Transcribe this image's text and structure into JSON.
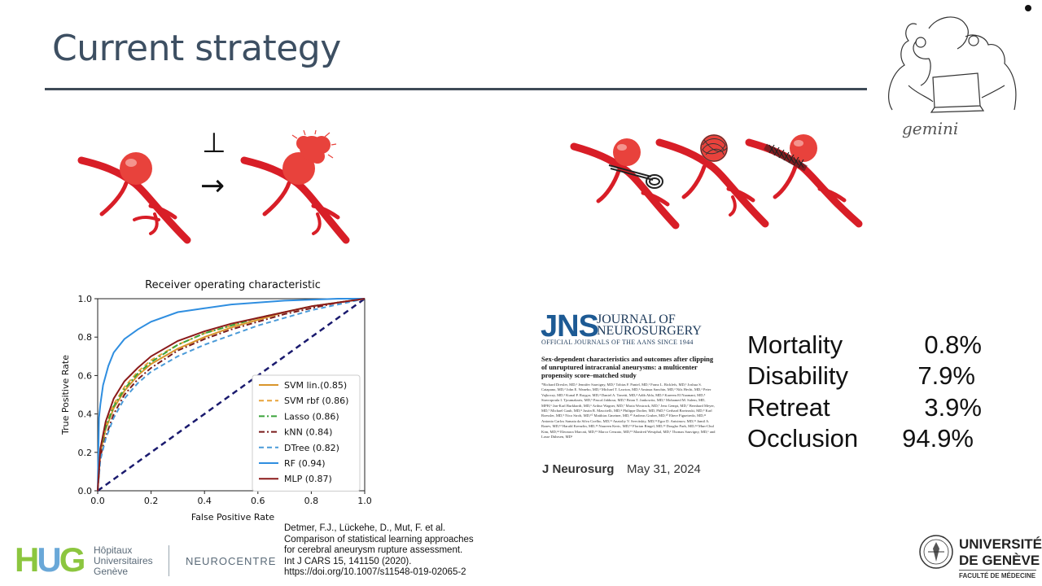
{
  "slide": {
    "title": "Current strategy"
  },
  "flow_symbols": {
    "perpendicular": "⊥",
    "arrow": "→"
  },
  "logos": {
    "gemini": "gemini",
    "hug": {
      "mark": "HUG",
      "line1": "Hôpitaux",
      "line2": "Universitaires",
      "line3": "Genève",
      "neurocentre": "NEUROCENTRE"
    },
    "unige": {
      "line1": "UNIVERSITÉ",
      "line2": "DE GENÈVE",
      "line3": "FACULTÉ DE MÉDECINE"
    }
  },
  "journal": {
    "letters": "JNS",
    "name_line1": "JOURNAL OF",
    "name_line2": "NEUROSURGERY",
    "official": "OFFICIAL JOURNALS OF THE AANS SINCE 1944",
    "article_title": "Sex-dependent characteristics and outcomes after clipping of unruptured intracranial aneurysms: a multicenter propensity score–matched study",
    "authors": "*Richard Drexler, MD,¹ Jennifer Sauvigny, MD,¹ Tobias F. Pantel, MD,¹ Franz L. Ricklefs, MD,¹ Joshua S. Catapano, MD,² John E. Wanebo, MD,² Michael T. Lawton, MD,² Aminaa Sanchin, MD,³ Nils Hecht, MD,³ Peter Vajkoczy, MD,³ Kunal P. Raygor, MD,⁴ Daniel A. Tonetti, MD,⁴ Adib Abla, MD,⁴ Kareem El Naamani, MD,⁵ Stavropoula I. Tjoumakaris, MD,⁵ Pascal Jabbour, MD,⁵ Brian T. Jankowitz, MD,⁶ Mohamed M. Salem, MD, MPH,⁶ Jan-Karl Burkhardt, MD,⁶ Arthur Wagner, MD,⁷ Maria Wostrack, MD,⁷ Jens Gempt, MD,⁷ Bernhard Meyer, MD,⁷ Michael Gaub, MD,⁸ Justin R. Mascitelli, MD,⁸ Philippe Dodier, MD, PhD,⁹ Gerhard Bavinzski, MD,⁹ Karl Roessler, MD,⁹ Nico Stroh, MD,¹⁰ Matthias Gmeiner, MD,¹⁰ Andreas Gruber, MD,¹⁰ Ebere Figueiredo, MD,¹¹ Antonio Carlos Samaia da Silva Coelho, MD,¹¹ Anatoliy V. Servitskiy, MD,¹² Egor D. Anisimov, MD,¹² Jamil A. Rzaev, MD,¹² Harald Krenzlin, MD,¹³ Naureen Keric, MD,¹³ Florian Ringel, MD,¹³ Dougho Park, MD,¹⁴ Mun-Chul Kim, MD,¹⁴ Eleonora Marcati, MD,¹⁵ Marco Cenzato, MD,¹⁵ Manfred Westphal, MD,¹ Thomas Sauvigny, MD,¹ and Lasse Dührsen, MD¹",
    "journal_abbrev": "J Neurosurg",
    "date": "May 31, 2024"
  },
  "outcomes": [
    {
      "label": "Mortality",
      "value": "0.8%"
    },
    {
      "label": "Disability",
      "value": "7.9%"
    },
    {
      "label": "Retreat",
      "value": "3.9%"
    },
    {
      "label": "Occlusion",
      "value": "94.9%"
    }
  ],
  "citation": {
    "line1": "Detmer, F.J., Lückehe, D., Mut, F. et al.",
    "line2": "Comparison of statistical learning approaches",
    "line3": "for cerebral aneurysm rupture assessment.",
    "line4": "Int J CARS 15, 141150 (2020).",
    "line5": "https://doi.org/10.1007/s11548-019-02065-2"
  },
  "chart_data": {
    "type": "line",
    "title": "Receiver operating characteristic",
    "xlabel": "False Positive Rate",
    "ylabel": "True Positive Rate",
    "xlim": [
      0,
      1
    ],
    "ylim": [
      0,
      1
    ],
    "x_ticks": [
      "0.0",
      "0.2",
      "0.4",
      "0.6",
      "0.8",
      "1.0"
    ],
    "y_ticks": [
      "0.0",
      "0.2",
      "0.4",
      "0.6",
      "0.8",
      "1.0"
    ],
    "grid": false,
    "legend_position": "lower-right",
    "diagonal_color": "#1a1a6e",
    "series": [
      {
        "name": "SVM lin.(0.85)",
        "color": "#d9952b",
        "dash": "solid",
        "x": [
          0,
          0.01,
          0.03,
          0.06,
          0.1,
          0.15,
          0.2,
          0.3,
          0.4,
          0.5,
          0.6,
          0.7,
          0.8,
          0.9,
          1.0
        ],
        "y": [
          0,
          0.2,
          0.32,
          0.43,
          0.52,
          0.6,
          0.66,
          0.74,
          0.8,
          0.85,
          0.89,
          0.93,
          0.96,
          0.98,
          1.0
        ]
      },
      {
        "name": "SVM rbf (0.86)",
        "color": "#e8a33a",
        "dash": "dashed",
        "x": [
          0,
          0.01,
          0.03,
          0.06,
          0.1,
          0.15,
          0.2,
          0.3,
          0.4,
          0.5,
          0.6,
          0.7,
          0.8,
          0.9,
          1.0
        ],
        "y": [
          0,
          0.22,
          0.34,
          0.45,
          0.54,
          0.62,
          0.68,
          0.76,
          0.82,
          0.86,
          0.9,
          0.93,
          0.96,
          0.98,
          1.0
        ]
      },
      {
        "name": "Lasso (0.86)",
        "color": "#3aa33a",
        "dash": "dashdot",
        "x": [
          0,
          0.01,
          0.03,
          0.06,
          0.1,
          0.15,
          0.2,
          0.3,
          0.4,
          0.5,
          0.6,
          0.7,
          0.8,
          0.9,
          1.0
        ],
        "y": [
          0,
          0.21,
          0.33,
          0.44,
          0.53,
          0.61,
          0.67,
          0.76,
          0.82,
          0.86,
          0.9,
          0.93,
          0.96,
          0.98,
          1.0
        ]
      },
      {
        "name": "kNN (0.84)",
        "color": "#7a1b1b",
        "dash": "dashdot",
        "x": [
          0,
          0.01,
          0.03,
          0.06,
          0.1,
          0.15,
          0.2,
          0.3,
          0.4,
          0.5,
          0.6,
          0.7,
          0.8,
          0.9,
          1.0
        ],
        "y": [
          0,
          0.18,
          0.28,
          0.4,
          0.5,
          0.58,
          0.64,
          0.73,
          0.79,
          0.84,
          0.88,
          0.92,
          0.95,
          0.98,
          1.0
        ]
      },
      {
        "name": "DTree (0.82)",
        "color": "#4a9ad8",
        "dash": "dashed",
        "x": [
          0,
          0.01,
          0.03,
          0.06,
          0.1,
          0.15,
          0.2,
          0.3,
          0.4,
          0.5,
          0.6,
          0.7,
          0.8,
          0.9,
          1.0
        ],
        "y": [
          0,
          0.16,
          0.27,
          0.38,
          0.48,
          0.56,
          0.62,
          0.7,
          0.76,
          0.81,
          0.86,
          0.9,
          0.94,
          0.97,
          1.0
        ]
      },
      {
        "name": "RF (0.94)",
        "color": "#2f8ee0",
        "dash": "solid",
        "x": [
          0,
          0.005,
          0.01,
          0.02,
          0.04,
          0.06,
          0.1,
          0.15,
          0.2,
          0.3,
          0.4,
          0.5,
          0.6,
          0.7,
          0.8,
          0.9,
          1.0
        ],
        "y": [
          0,
          0.38,
          0.45,
          0.55,
          0.65,
          0.72,
          0.79,
          0.84,
          0.88,
          0.93,
          0.95,
          0.97,
          0.98,
          0.99,
          0.995,
          1.0,
          1.0
        ]
      },
      {
        "name": "MLP (0.87)",
        "color": "#8b1a1a",
        "dash": "solid",
        "x": [
          0,
          0.01,
          0.03,
          0.06,
          0.1,
          0.15,
          0.2,
          0.3,
          0.4,
          0.5,
          0.6,
          0.7,
          0.8,
          0.9,
          1.0
        ],
        "y": [
          0,
          0.22,
          0.36,
          0.48,
          0.57,
          0.64,
          0.7,
          0.78,
          0.83,
          0.87,
          0.9,
          0.93,
          0.96,
          0.98,
          1.0
        ]
      }
    ]
  },
  "colors": {
    "vessel": "#d81e27",
    "aneurysm": "#e8423c",
    "title": "#3d4f62",
    "hug_green": "#8cc63f",
    "hug_blue": "#6aa8d8"
  }
}
